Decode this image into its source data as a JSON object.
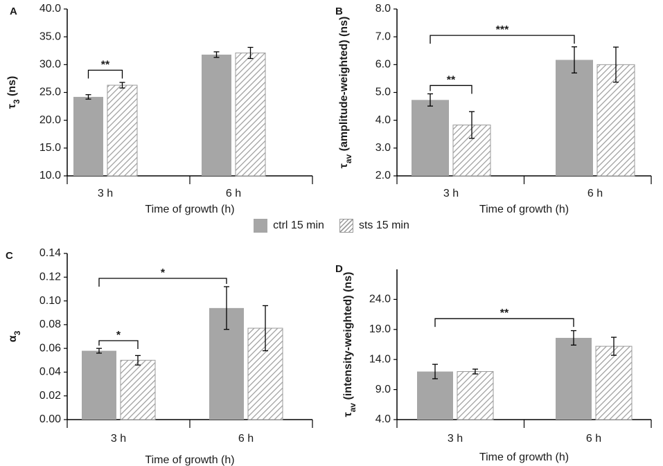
{
  "colors": {
    "ctrl": "#a6a6a6",
    "hatch": "#9a9a9a",
    "axis": "#000000",
    "text": "#1a1a1a"
  },
  "legend": {
    "ctrl_label": "ctrl 15 min",
    "sts_label": "sts 15 min"
  },
  "chart_data": [
    {
      "panel": "A",
      "type": "bar",
      "categories": [
        "3 h",
        "6 h"
      ],
      "xlabel": "Time of growth (h)",
      "ylabel_main": "τ",
      "ylabel_sub": "3",
      "ylabel_suffix": " (ns)",
      "ylim": [
        10,
        40
      ],
      "yticks": [
        10,
        15,
        20,
        25,
        30,
        35,
        40
      ],
      "decimals": 1,
      "series": [
        {
          "name": "ctrl 15 min",
          "values": [
            24.2,
            31.8
          ],
          "errors": [
            0.4,
            0.5
          ]
        },
        {
          "name": "sts 15 min",
          "values": [
            26.3,
            32.1
          ],
          "errors": [
            0.5,
            1.0
          ]
        }
      ],
      "significance": [
        {
          "from": [
            0,
            0
          ],
          "to": [
            0,
            1
          ],
          "label": "**",
          "y": 29.0
        }
      ]
    },
    {
      "panel": "B",
      "type": "bar",
      "categories": [
        "3 h",
        "6 h"
      ],
      "xlabel": "Time of growth (h)",
      "ylabel_main": "τ",
      "ylabel_sub": "av",
      "ylabel_suffix": " (amplitude-weighted) (ns)",
      "ylim": [
        2,
        8
      ],
      "yticks": [
        2,
        3,
        4,
        5,
        6,
        7,
        8
      ],
      "decimals": 1,
      "series": [
        {
          "name": "ctrl 15 min",
          "values": [
            4.73,
            6.17
          ],
          "errors": [
            0.22,
            0.47
          ]
        },
        {
          "name": "sts 15 min",
          "values": [
            3.83,
            6.0
          ],
          "errors": [
            0.48,
            0.63
          ]
        }
      ],
      "significance": [
        {
          "from": [
            0,
            0
          ],
          "to": [
            1,
            0
          ],
          "label": "***",
          "y": 7.05
        },
        {
          "from": [
            0,
            0
          ],
          "to": [
            0,
            1
          ],
          "label": "**",
          "y": 5.25
        }
      ]
    },
    {
      "panel": "C",
      "type": "bar",
      "categories": [
        "3 h",
        "6 h"
      ],
      "xlabel": "Time of growth (h)",
      "ylabel_main": "α",
      "ylabel_sub": "3",
      "ylabel_suffix": "",
      "ylim": [
        0,
        0.14
      ],
      "yticks": [
        0,
        0.02,
        0.04,
        0.06,
        0.08,
        0.1,
        0.12,
        0.14
      ],
      "decimals": 2,
      "series": [
        {
          "name": "ctrl 15 min",
          "values": [
            0.058,
            0.094
          ],
          "errors": [
            0.002,
            0.018
          ]
        },
        {
          "name": "sts 15 min",
          "values": [
            0.05,
            0.077
          ],
          "errors": [
            0.004,
            0.019
          ]
        }
      ],
      "significance": [
        {
          "from": [
            0,
            0
          ],
          "to": [
            1,
            0
          ],
          "label": "*",
          "y": 0.119
        },
        {
          "from": [
            0,
            0
          ],
          "to": [
            0,
            1
          ],
          "label": "*",
          "y": 0.0665
        }
      ]
    },
    {
      "panel": "D",
      "type": "bar",
      "categories": [
        "3 h",
        "6 h"
      ],
      "xlabel": "Time of growth (h)",
      "ylabel_main": "τ",
      "ylabel_sub": "av",
      "ylabel_suffix": " (intensity-weighted) (ns)",
      "ylim": [
        4,
        29
      ],
      "yticks": [
        4,
        9,
        14,
        19,
        24
      ],
      "decimals": 1,
      "series": [
        {
          "name": "ctrl 15 min",
          "values": [
            12.0,
            17.6
          ],
          "errors": [
            1.2,
            1.2
          ]
        },
        {
          "name": "sts 15 min",
          "values": [
            12.0,
            16.2
          ],
          "errors": [
            0.4,
            1.5
          ]
        }
      ],
      "significance": [
        {
          "from": [
            0,
            0
          ],
          "to": [
            1,
            0
          ],
          "label": "**",
          "y": 20.8
        }
      ]
    }
  ]
}
